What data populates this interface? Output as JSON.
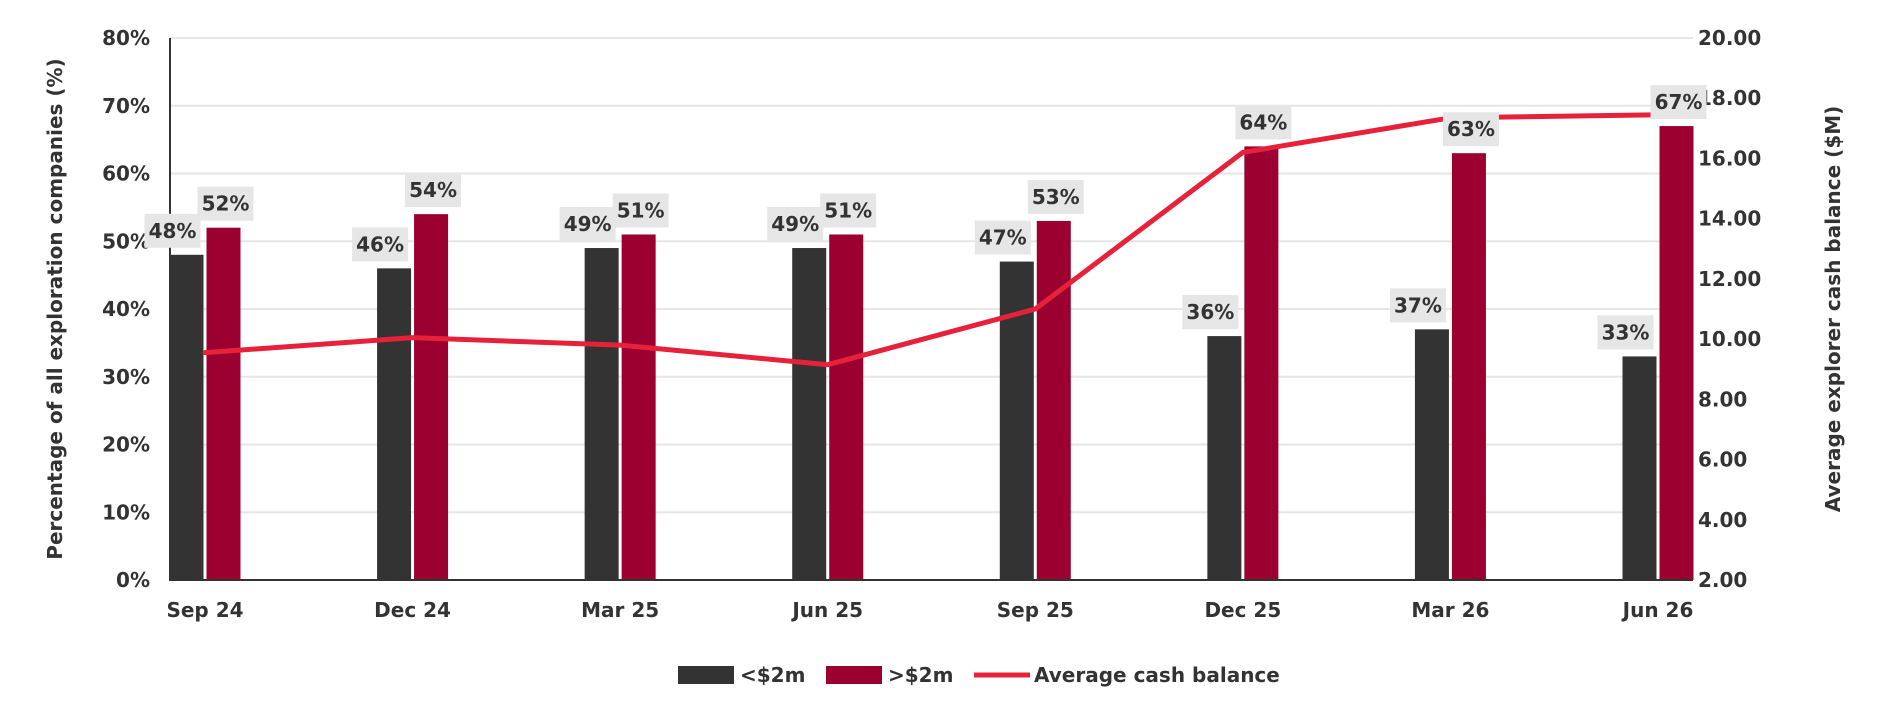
{
  "chart_data": {
    "type": "bar",
    "categories": [
      "Sep 24",
      "Dec 24",
      "Mar 25",
      "Jun 25",
      "Sep 25",
      "Dec 25",
      "Mar 26",
      "Jun 26"
    ],
    "series": [
      {
        "name": "<$2m",
        "type": "bar",
        "axis": "left",
        "color": "#333333",
        "values": [
          48,
          46,
          49,
          49,
          47,
          36,
          37,
          33
        ],
        "labels": [
          "48%",
          "46%",
          "49%",
          "49%",
          "47%",
          "36%",
          "37%",
          "33%"
        ]
      },
      {
        "name": ">$2m",
        "type": "bar",
        "axis": "left",
        "color": "#9B0030",
        "values": [
          52,
          54,
          51,
          51,
          53,
          64,
          63,
          67
        ],
        "labels": [
          "52%",
          "54%",
          "51%",
          "51%",
          "53%",
          "64%",
          "63%",
          "67%"
        ]
      },
      {
        "name": "Average cash balance",
        "type": "line",
        "axis": "right",
        "color": "#E8213A",
        "values": [
          9.55,
          10.05,
          9.8,
          9.15,
          11.0,
          16.2,
          17.35,
          17.45
        ]
      }
    ],
    "ylabel": "Percentage of all exploration companies (%)",
    "y2label": "Average explorer cash balance ($M)",
    "ylim": [
      0,
      80
    ],
    "y2lim": [
      2,
      20
    ],
    "yticks": [
      "0%",
      "10%",
      "20%",
      "30%",
      "40%",
      "50%",
      "60%",
      "70%",
      "80%"
    ],
    "y2ticks": [
      "2.00",
      "4.00",
      "6.00",
      "8.00",
      "10.00",
      "12.00",
      "14.00",
      "16.00",
      "18.00",
      "20.00"
    ],
    "grid": true,
    "legend_position": "bottom-center",
    "colors": {
      "grid": "#e6e6e6",
      "axis": "#333333",
      "label_bg": "#e6e6e6"
    }
  }
}
